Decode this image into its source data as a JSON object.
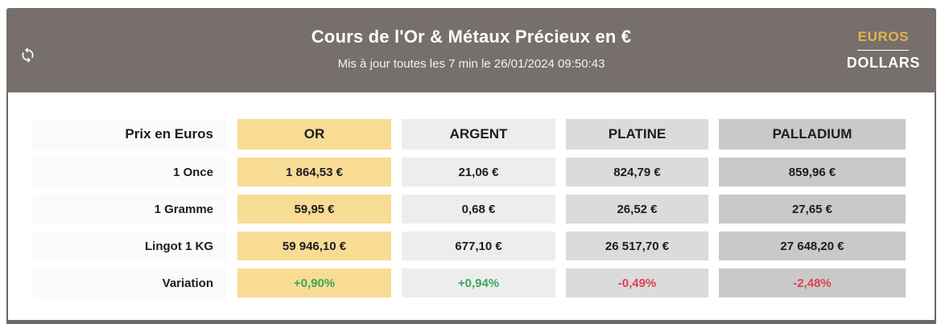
{
  "header": {
    "title": "Cours de l'Or & Métaux Précieux en €",
    "subtitle": "Mis à jour toutes les 7 min le 26/01/2024 09:50:43",
    "currency_toggle": {
      "active_label": "EUROS",
      "inactive_label": "DOLLARS"
    }
  },
  "colors": {
    "header_background": "#766F6B",
    "accent_gold_text": "#E2B44C",
    "gold_cell": "#F8DC94",
    "argent_cell": "#EDEDED",
    "platine_cell": "#DBDBDB",
    "palladium_cell": "#C9C9C9",
    "label_cell": "#FAFAFA",
    "positive": "#3DA65B",
    "negative": "#DB4350",
    "border_dark": "#6C6763"
  },
  "table": {
    "corner_label": "Prix en Euros",
    "columns": [
      {
        "key": "or",
        "label": "OR",
        "bg": "gold_cell"
      },
      {
        "key": "argent",
        "label": "ARGENT",
        "bg": "argent_cell"
      },
      {
        "key": "platine",
        "label": "PLATINE",
        "bg": "platine_cell"
      },
      {
        "key": "palladium",
        "label": "PALLADIUM",
        "bg": "palladium_cell"
      }
    ],
    "rows": [
      {
        "key": "once",
        "label": "1 Once",
        "values": [
          "1 864,53 €",
          "21,06 €",
          "824,79 €",
          "859,96 €"
        ]
      },
      {
        "key": "gramme",
        "label": "1 Gramme",
        "values": [
          "59,95 €",
          "0,68 €",
          "26,52 €",
          "27,65 €"
        ]
      },
      {
        "key": "lingot",
        "label": "Lingot 1 KG",
        "values": [
          "59 946,10 €",
          "677,10 €",
          "26 517,70 €",
          "27 648,20 €"
        ]
      },
      {
        "key": "variation",
        "label": "Variation",
        "values": [
          "+0,90%",
          "+0,94%",
          "-0,49%",
          "-2,48%"
        ],
        "trends": [
          "up",
          "up",
          "down",
          "down"
        ]
      }
    ]
  }
}
